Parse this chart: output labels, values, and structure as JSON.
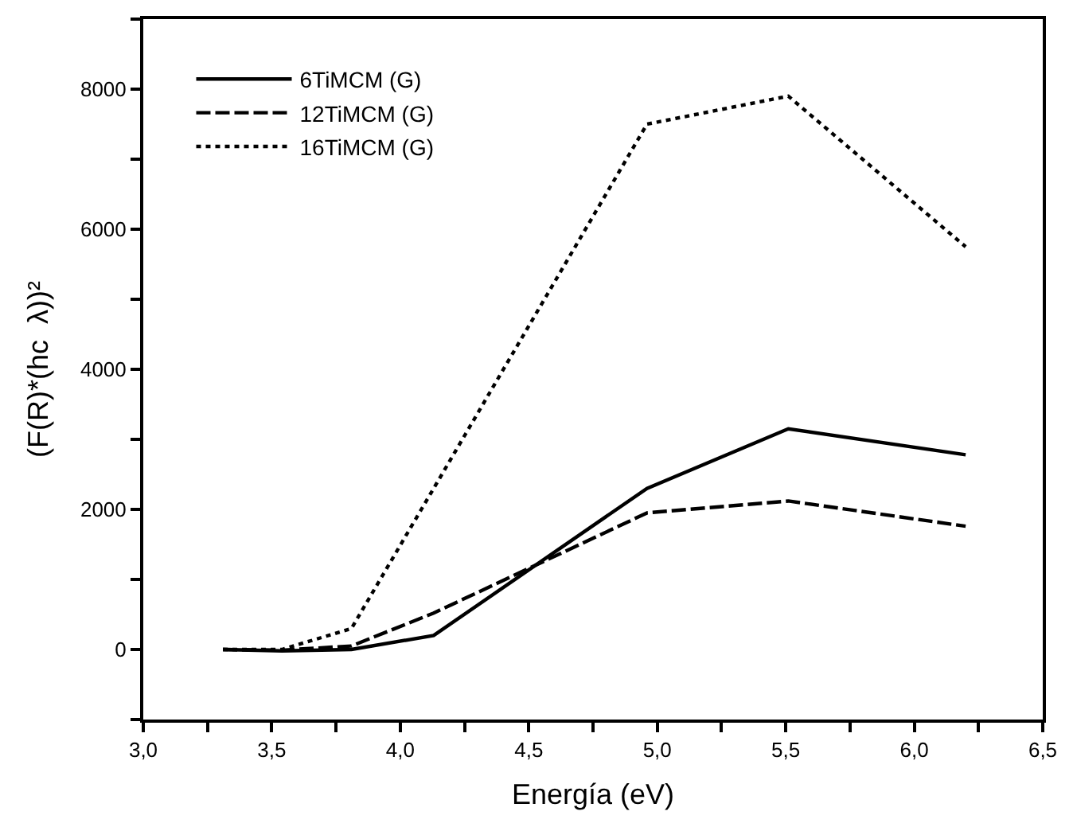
{
  "chart_data": {
    "type": "line",
    "xlabel": "Energía (eV)",
    "ylabel": "(F(R)*(hc  λ))²",
    "x": [
      3.31,
      3.54,
      3.81,
      4.13,
      4.96,
      5.51,
      6.2
    ],
    "series": [
      {
        "name": "6TiMCM (G)",
        "color": "#000000",
        "line_style": "solid",
        "values": [
          0,
          -20,
          0,
          200,
          2300,
          3150,
          2780
        ]
      },
      {
        "name": "12TiMCM (G)",
        "color": "#000000",
        "line_style": "dashed",
        "values": [
          0,
          -10,
          50,
          520,
          1950,
          2120,
          1760
        ]
      },
      {
        "name": "16TiMCM (G)",
        "color": "#000000",
        "line_style": "dotted",
        "values": [
          0,
          0,
          300,
          2300,
          7500,
          7900,
          5750
        ]
      }
    ],
    "xlim": [
      3.0,
      6.5
    ],
    "ylim": [
      -1000,
      9000
    ],
    "xticks": [
      {
        "value": 3.0,
        "label": "3,0"
      },
      {
        "value": 3.25,
        "label": null
      },
      {
        "value": 3.5,
        "label": "3,5"
      },
      {
        "value": 3.75,
        "label": null
      },
      {
        "value": 4.0,
        "label": "4,0"
      },
      {
        "value": 4.25,
        "label": null
      },
      {
        "value": 4.5,
        "label": "4,5"
      },
      {
        "value": 4.75,
        "label": null
      },
      {
        "value": 5.0,
        "label": "5,0"
      },
      {
        "value": 5.25,
        "label": null
      },
      {
        "value": 5.5,
        "label": "5,5"
      },
      {
        "value": 5.75,
        "label": null
      },
      {
        "value": 6.0,
        "label": "6,0"
      },
      {
        "value": 6.25,
        "label": null
      },
      {
        "value": 6.5,
        "label": "6,5"
      }
    ],
    "yticks": [
      {
        "value": -1000,
        "label": null
      },
      0,
      {
        "value": 1000,
        "label": null
      },
      2000,
      {
        "value": 3000,
        "label": null
      },
      4000,
      {
        "value": 5000,
        "label": null
      },
      6000,
      {
        "value": 7000,
        "label": null
      },
      8000,
      {
        "value": 9000,
        "label": null
      }
    ],
    "legend": "top left",
    "marker": "none"
  }
}
